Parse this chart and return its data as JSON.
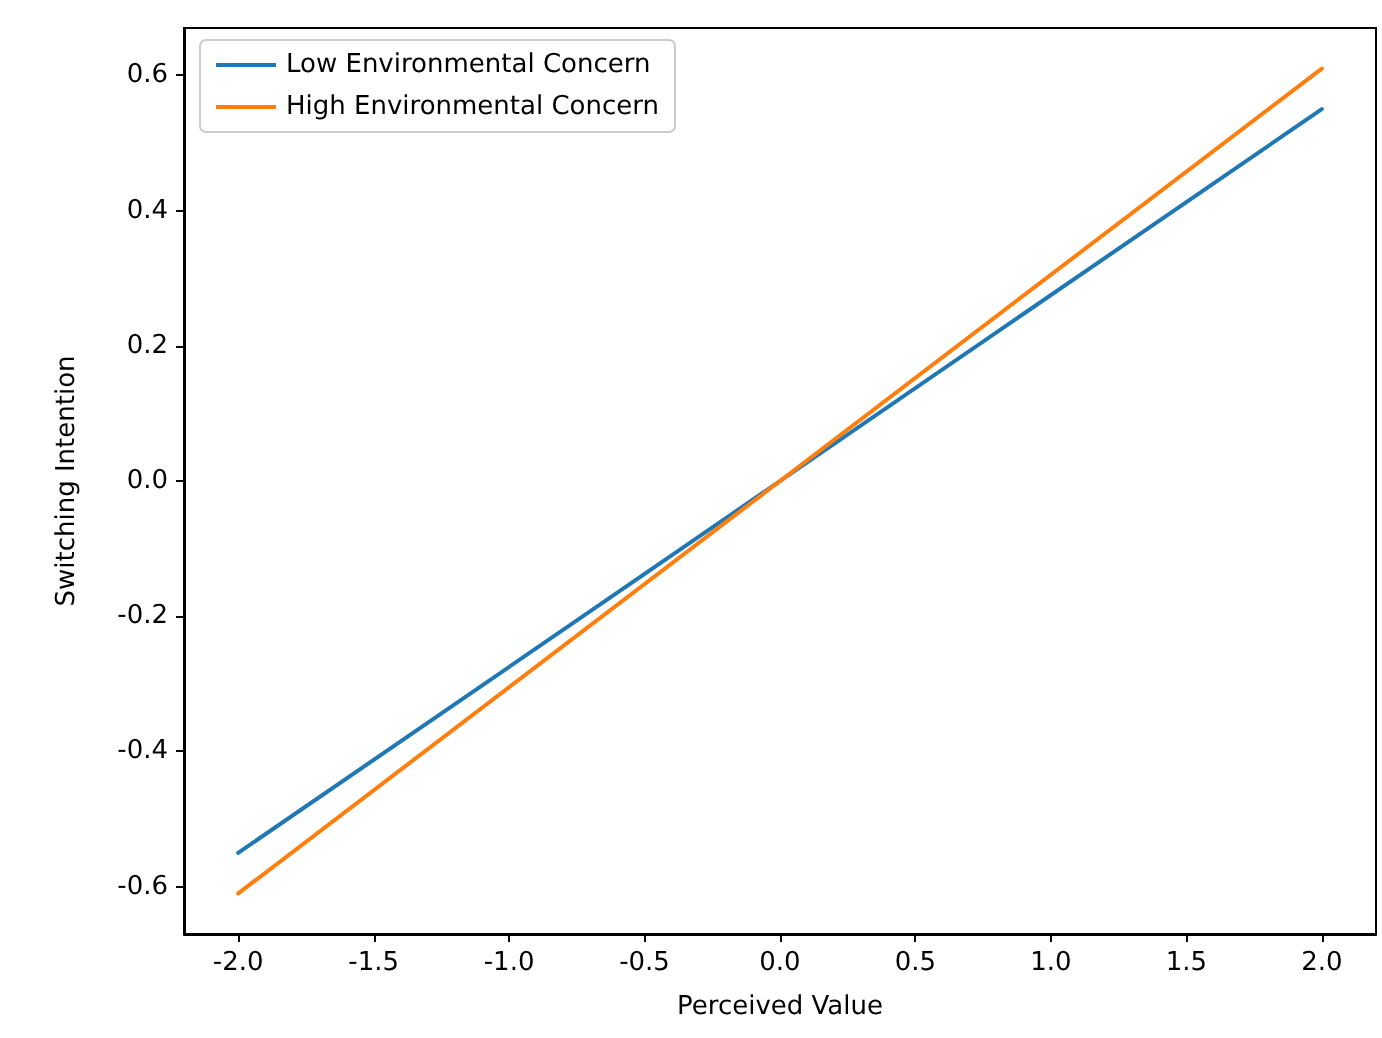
{
  "chart_data": {
    "type": "line",
    "xlabel": "Perceived Value",
    "ylabel": "Switching Intention",
    "series": [
      {
        "name": "Low Environmental Concern",
        "color": "#1f77b4",
        "values": [
          -0.55,
          0.55
        ]
      },
      {
        "name": "High Environmental Concern",
        "color": "#ff7f0e",
        "values": [
          -0.61,
          0.61
        ]
      }
    ],
    "x": [
      -2.0,
      2.0
    ],
    "xlim": [
      -2.2,
      2.2
    ],
    "xticks": [
      {
        "value": -2,
        "label": "-2.0"
      },
      -1.5,
      {
        "value": -1,
        "label": "-1.0"
      },
      -0.5,
      {
        "value": 0,
        "label": "0.0"
      },
      0.5,
      {
        "value": 1,
        "label": "1.0"
      },
      1.5,
      {
        "value": 2,
        "label": "2.0"
      }
    ],
    "ylim": [
      -0.67,
      0.67
    ],
    "yticks": [
      -0.6,
      -0.4,
      -0.2,
      {
        "value": 0,
        "label": "0.0"
      },
      0.2,
      0.4,
      0.6
    ],
    "grid": false,
    "legend": "top left",
    "marker": "none",
    "line_style": "solid"
  }
}
